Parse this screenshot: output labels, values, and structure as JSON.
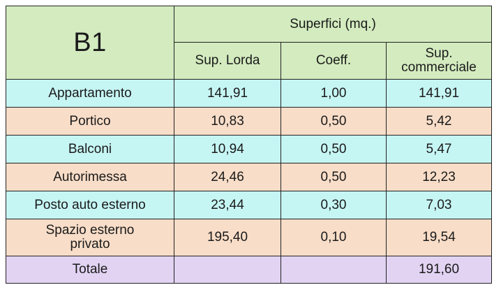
{
  "table": {
    "code": "B1",
    "group_header": "Superfici (mq.)",
    "columns": {
      "lorda": "Sup. Lorda",
      "coeff": "Coeff.",
      "commerciale_line1": "Sup.",
      "commerciale_line2": "commerciale"
    },
    "rows": [
      {
        "label": "Appartamento",
        "lorda": "141,91",
        "coeff": "1,00",
        "commerciale": "141,91"
      },
      {
        "label": "Portico",
        "lorda": "10,83",
        "coeff": "0,50",
        "commerciale": "5,42"
      },
      {
        "label": "Balconi",
        "lorda": "10,94",
        "coeff": "0,50",
        "commerciale": "5,47"
      },
      {
        "label": "Autorimessa",
        "lorda": "24,46",
        "coeff": "0,50",
        "commerciale": "12,23"
      },
      {
        "label": "Posto auto esterno",
        "lorda": "23,44",
        "coeff": "0,30",
        "commerciale": "7,03"
      },
      {
        "label_line1": "Spazio esterno",
        "label_line2": "privato",
        "lorda": "195,40",
        "coeff": "0,10",
        "commerciale": "19,54"
      }
    ],
    "total": {
      "label": "Totale",
      "commerciale": "191,60"
    }
  },
  "colors": {
    "header": "#d3ebbf",
    "row_cyan": "#c6f6f4",
    "row_peach": "#f8ddc8",
    "total": "#e2d3f3"
  }
}
